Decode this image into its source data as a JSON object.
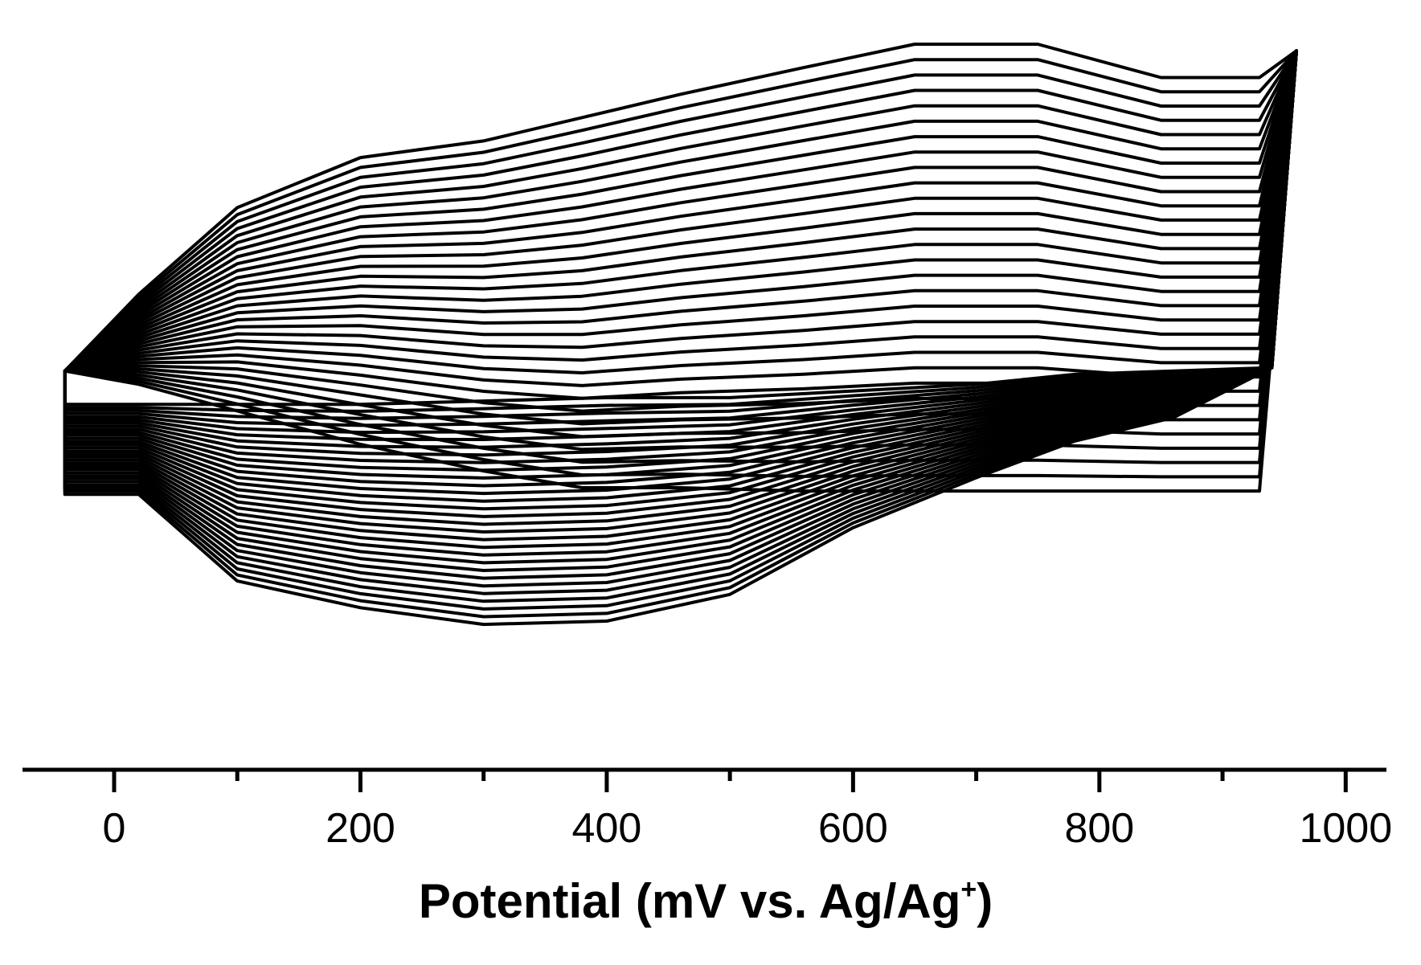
{
  "chart_data": {
    "type": "line",
    "title": "",
    "xlabel_text": "Potential (mV vs. Ag/Ag",
    "xlabel_superscript": "+",
    "xlabel_suffix": ")",
    "ylabel": "",
    "xlim": [
      -75,
      1000
    ],
    "x_ticks": [
      0,
      200,
      400,
      600,
      800,
      1000
    ],
    "x_minor_ticks": [
      100,
      300,
      500,
      700,
      900
    ],
    "y_axis_visible": false,
    "grid": false,
    "legend": "none",
    "series_count": 30,
    "potential_window": [
      -40,
      960
    ],
    "first_cycle": {
      "x": [
        -40,
        20,
        100,
        200,
        300,
        380,
        460,
        560,
        650,
        750,
        850,
        930,
        960,
        940,
        860,
        780,
        700,
        600,
        500,
        400,
        300,
        200,
        100,
        20,
        -40
      ],
      "y": [
        0.02,
        -0.02,
        -0.1,
        -0.2,
        -0.28,
        -0.33,
        -0.33,
        -0.34,
        -0.34,
        -0.34,
        -0.34,
        -0.34,
        0.98,
        0.03,
        0.02,
        0.01,
        -0.02,
        -0.04,
        -0.06,
        -0.06,
        -0.07,
        -0.08,
        -0.08,
        -0.08,
        -0.08
      ]
    },
    "last_cycle": {
      "x": [
        -40,
        20,
        100,
        200,
        300,
        380,
        460,
        560,
        650,
        750,
        850,
        930,
        960,
        940,
        860,
        780,
        700,
        600,
        500,
        400,
        300,
        200,
        100,
        20,
        -40
      ],
      "y": [
        0.02,
        0.25,
        0.51,
        0.66,
        0.71,
        0.78,
        0.85,
        0.93,
        1.0,
        1.0,
        0.9,
        0.9,
        0.98,
        0.03,
        -0.12,
        -0.19,
        -0.3,
        -0.45,
        -0.65,
        -0.73,
        -0.74,
        -0.69,
        -0.61,
        -0.35,
        -0.35
      ]
    },
    "colors": {
      "line": "#000000",
      "axis": "#000000",
      "background": "#ffffff"
    }
  }
}
